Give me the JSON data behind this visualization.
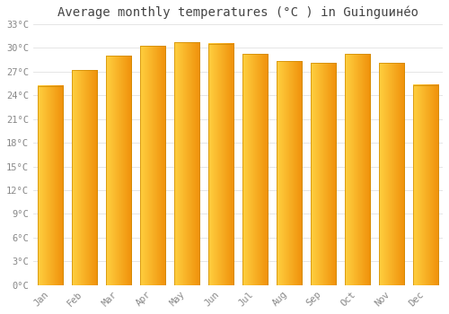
{
  "title": "Average monthly temperatures (°C ) in Guinguинéo",
  "months": [
    "Jan",
    "Feb",
    "Mar",
    "Apr",
    "May",
    "Jun",
    "Jul",
    "Aug",
    "Sep",
    "Oct",
    "Nov",
    "Dec"
  ],
  "temperatures": [
    25.2,
    27.2,
    29.0,
    30.2,
    30.7,
    30.5,
    29.2,
    28.3,
    28.1,
    29.2,
    28.1,
    25.3
  ],
  "bar_color_left": "#FFD040",
  "bar_color_right": "#F0900A",
  "ylim": [
    0,
    33
  ],
  "yticks": [
    0,
    3,
    6,
    9,
    12,
    15,
    18,
    21,
    24,
    27,
    30,
    33
  ],
  "ytick_labels": [
    "0°C",
    "3°C",
    "6°C",
    "9°C",
    "12°C",
    "15°C",
    "18°C",
    "21°C",
    "24°C",
    "27°C",
    "30°C",
    "33°C"
  ],
  "bg_color": "#FFFFFF",
  "grid_color": "#E0E0E0",
  "title_fontsize": 10,
  "tick_fontsize": 7.5,
  "font_family": "monospace",
  "bar_width": 0.75,
  "n_gradient_steps": 100
}
